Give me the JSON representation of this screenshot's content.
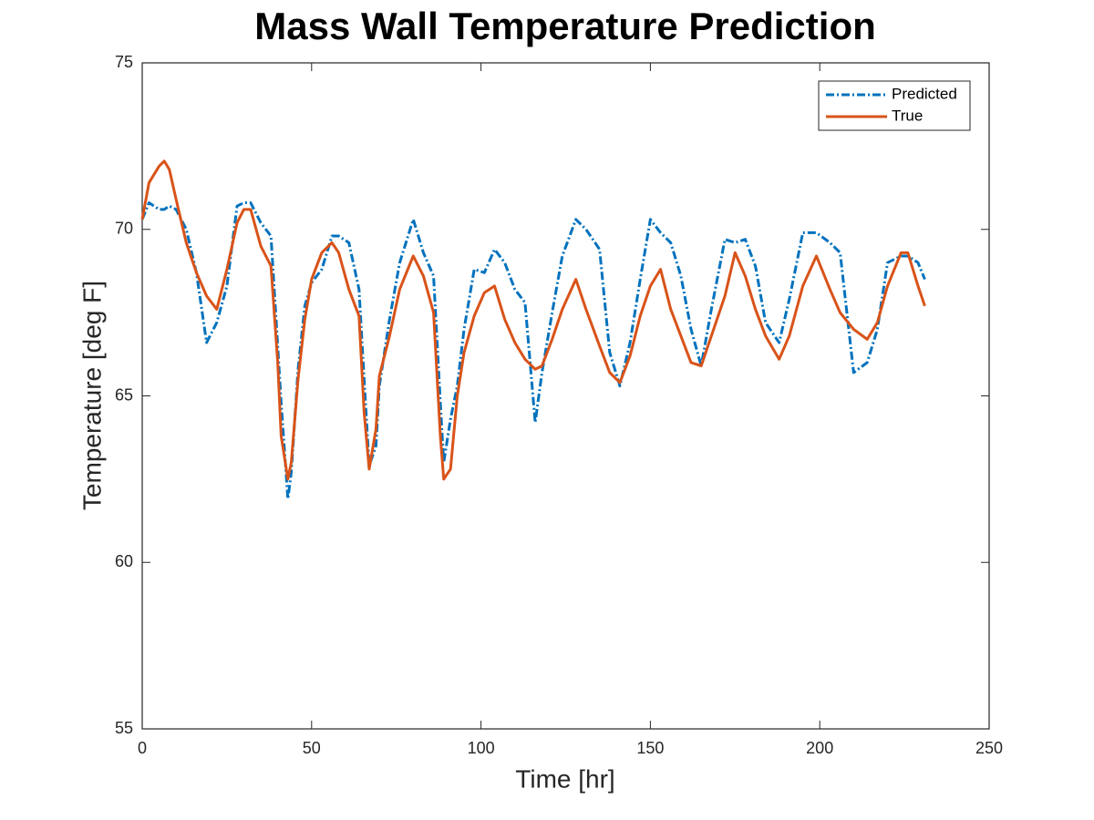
{
  "chart_data": {
    "type": "line",
    "title": "Mass Wall Temperature Prediction",
    "x_label": "Time [hr]",
    "y_label": "Temperature [deg F]",
    "x": [
      0,
      2,
      5,
      6.5,
      8,
      10,
      13,
      16,
      19,
      22,
      25,
      28,
      30,
      32,
      35,
      38,
      40,
      41,
      43,
      44,
      46,
      48,
      50,
      53,
      56,
      58,
      61,
      64,
      65.5,
      67,
      69,
      70,
      73,
      76,
      80,
      83,
      86,
      88,
      89,
      91,
      93,
      95,
      98,
      101,
      104,
      107,
      110,
      113,
      116,
      118,
      121,
      124,
      128,
      131,
      135,
      138,
      141,
      144,
      147,
      150,
      153,
      156,
      159,
      162,
      165,
      168,
      172,
      175,
      178,
      181,
      184,
      188,
      191,
      195,
      199,
      203,
      206,
      210,
      214,
      217,
      220,
      224,
      226,
      229,
      231
    ],
    "series": [
      {
        "name": "Predicted",
        "color": "#0072BD",
        "dash": "dash-dot",
        "values": [
          70.3,
          70.8,
          70.6,
          70.6,
          70.7,
          70.6,
          70.0,
          68.7,
          66.6,
          67.2,
          68.3,
          70.7,
          70.8,
          70.8,
          70.2,
          69.8,
          66.5,
          64.8,
          61.9,
          62.7,
          65.8,
          67.7,
          68.4,
          68.8,
          69.8,
          69.8,
          69.6,
          68.2,
          65.5,
          62.9,
          63.5,
          65.3,
          67.3,
          69.0,
          70.3,
          69.3,
          68.6,
          64.8,
          63.0,
          64.3,
          65.3,
          67.0,
          68.8,
          68.7,
          69.4,
          69.0,
          68.2,
          67.8,
          64.2,
          65.7,
          67.5,
          69.2,
          70.3,
          70.0,
          69.4,
          66.3,
          65.3,
          66.6,
          68.5,
          70.3,
          69.9,
          69.6,
          68.6,
          67.0,
          65.9,
          67.6,
          69.7,
          69.6,
          69.7,
          68.9,
          67.2,
          66.6,
          67.9,
          69.9,
          69.9,
          69.6,
          69.3,
          65.7,
          66.0,
          67.0,
          69.0,
          69.2,
          69.2,
          69.0,
          68.5
        ]
      },
      {
        "name": "True",
        "color": "#D95319",
        "dash": "solid",
        "values": [
          70.3,
          71.4,
          71.9,
          72.05,
          71.8,
          70.9,
          69.6,
          68.7,
          68.0,
          67.6,
          68.8,
          70.2,
          70.6,
          70.6,
          69.5,
          68.9,
          66.0,
          63.8,
          62.5,
          63.0,
          65.5,
          67.3,
          68.5,
          69.3,
          69.6,
          69.3,
          68.2,
          67.4,
          64.5,
          62.8,
          64.0,
          65.6,
          66.8,
          68.2,
          69.2,
          68.6,
          67.5,
          63.8,
          62.5,
          62.8,
          65.0,
          66.3,
          67.4,
          68.1,
          68.3,
          67.3,
          66.6,
          66.1,
          65.8,
          65.9,
          66.7,
          67.6,
          68.5,
          67.6,
          66.5,
          65.7,
          65.4,
          66.2,
          67.4,
          68.3,
          68.8,
          67.6,
          66.8,
          66.0,
          65.9,
          66.8,
          68.0,
          69.3,
          68.6,
          67.6,
          66.8,
          66.1,
          66.8,
          68.3,
          69.2,
          68.2,
          67.5,
          67.0,
          66.7,
          67.2,
          68.3,
          69.3,
          69.3,
          68.3,
          67.7
        ]
      }
    ],
    "xlim": [
      0,
      250
    ],
    "xticks": [
      0,
      50,
      100,
      150,
      200,
      250
    ],
    "ylim": [
      55,
      75
    ],
    "yticks": [
      55,
      60,
      65,
      70,
      75
    ],
    "grid": false,
    "legend": "northeast"
  }
}
